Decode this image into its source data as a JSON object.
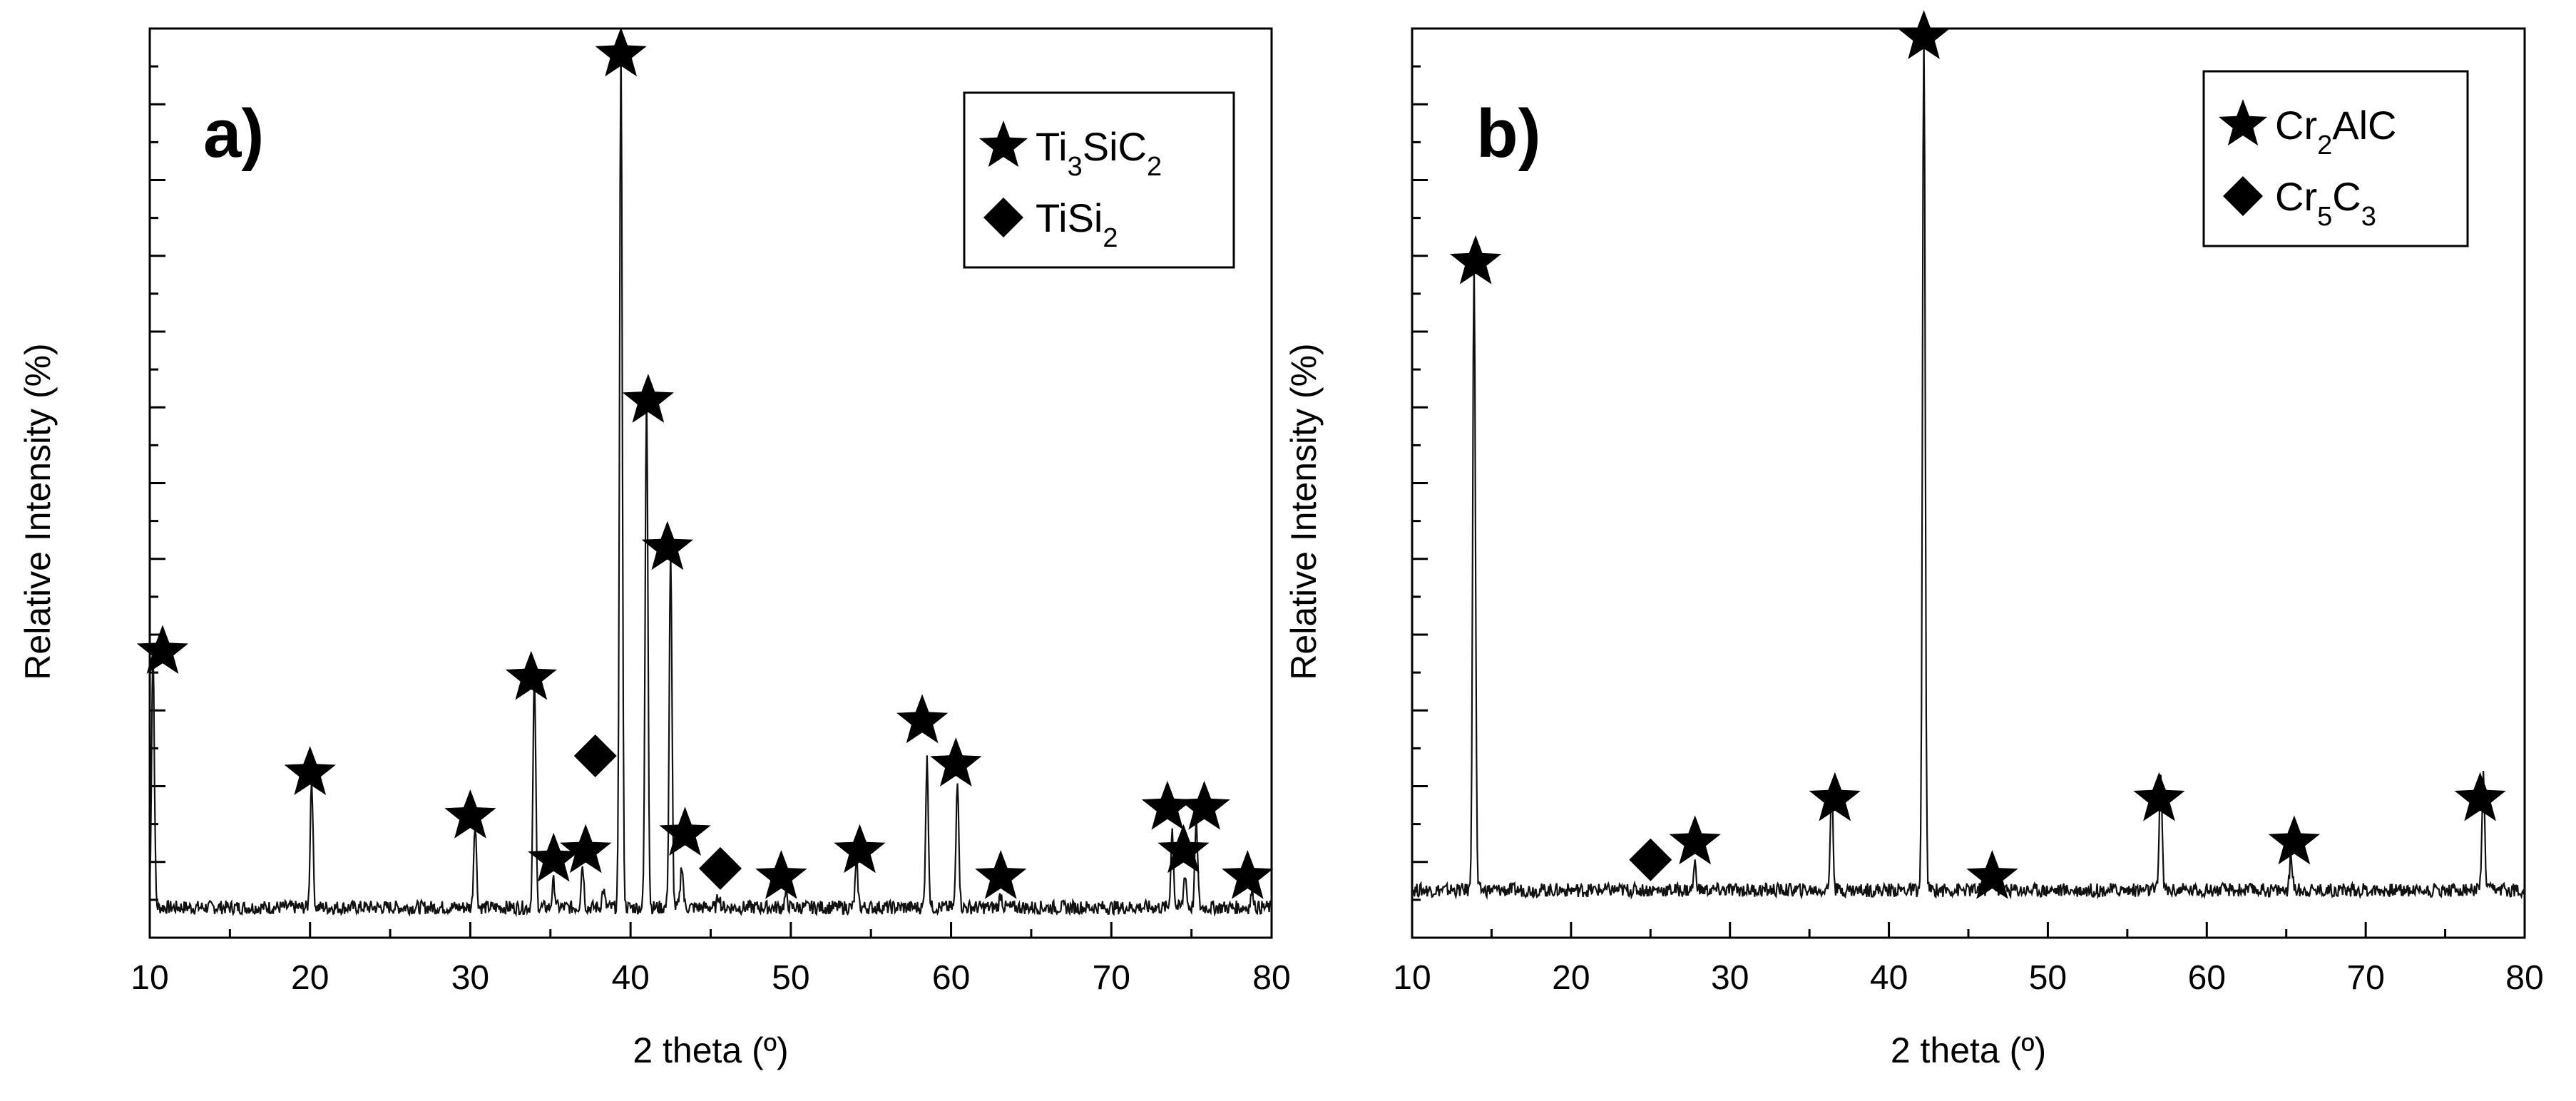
{
  "chart_data": [
    {
      "type": "line",
      "panel_label": "a)",
      "xlabel": "2 theta (º)",
      "ylabel": "Relative Intensity (%)",
      "xlim": [
        10,
        80
      ],
      "ylim": [
        0,
        105
      ],
      "x_ticks": [
        10,
        20,
        30,
        40,
        50,
        60,
        70,
        80
      ],
      "x_tick_labels": [
        "10",
        "20",
        "30",
        "40",
        "50",
        "60",
        "70",
        "80"
      ],
      "y_tick_labels_shown": false,
      "grid": false,
      "legend_position": "top-right",
      "legend": [
        {
          "marker": "star",
          "label_parts": [
            [
              "Ti",
              ""
            ],
            [
              "3",
              "sub"
            ],
            [
              "SiC",
              ""
            ],
            [
              "2",
              "sub"
            ]
          ]
        },
        {
          "marker": "diamond",
          "label_parts": [
            [
              "TiSi",
              ""
            ],
            [
              "2",
              "sub"
            ]
          ]
        }
      ],
      "baseline": 3.5,
      "peaks": [
        [
          10.2,
          30
        ],
        [
          20.1,
          15
        ],
        [
          30.3,
          10
        ],
        [
          34.0,
          27
        ],
        [
          35.2,
          3
        ],
        [
          37.0,
          5
        ],
        [
          38.3,
          2
        ],
        [
          39.4,
          100
        ],
        [
          41.0,
          60
        ],
        [
          42.5,
          41
        ],
        [
          43.2,
          5
        ],
        [
          45.5,
          1.5
        ],
        [
          49.7,
          1.5
        ],
        [
          54.1,
          5
        ],
        [
          58.5,
          17
        ],
        [
          60.4,
          15
        ],
        [
          63.1,
          1.5
        ],
        [
          73.8,
          9
        ],
        [
          74.6,
          4
        ],
        [
          75.3,
          10
        ],
        [
          78.8,
          2
        ]
      ],
      "markers": [
        {
          "kind": "star",
          "x": 10.8,
          "y": 33
        },
        {
          "kind": "star",
          "x": 20.0,
          "y": 19
        },
        {
          "kind": "star",
          "x": 30.0,
          "y": 14
        },
        {
          "kind": "star",
          "x": 33.8,
          "y": 30
        },
        {
          "kind": "star",
          "x": 35.2,
          "y": 9
        },
        {
          "kind": "star",
          "x": 37.2,
          "y": 10
        },
        {
          "kind": "diamond",
          "x": 37.8,
          "y": 21
        },
        {
          "kind": "star",
          "x": 39.4,
          "y": 102
        },
        {
          "kind": "star",
          "x": 41.1,
          "y": 62
        },
        {
          "kind": "star",
          "x": 42.3,
          "y": 45
        },
        {
          "kind": "star",
          "x": 43.4,
          "y": 12
        },
        {
          "kind": "diamond",
          "x": 45.6,
          "y": 8
        },
        {
          "kind": "star",
          "x": 49.4,
          "y": 7
        },
        {
          "kind": "star",
          "x": 54.3,
          "y": 10
        },
        {
          "kind": "star",
          "x": 58.2,
          "y": 25
        },
        {
          "kind": "star",
          "x": 60.3,
          "y": 20
        },
        {
          "kind": "star",
          "x": 63.1,
          "y": 7
        },
        {
          "kind": "star",
          "x": 73.5,
          "y": 15
        },
        {
          "kind": "star",
          "x": 74.5,
          "y": 10
        },
        {
          "kind": "star",
          "x": 75.8,
          "y": 15
        },
        {
          "kind": "star",
          "x": 78.5,
          "y": 7
        }
      ]
    },
    {
      "type": "line",
      "panel_label": "b)",
      "xlabel": "2 theta (º)",
      "ylabel": "Relative Intensity (%)",
      "xlim": [
        10,
        80
      ],
      "ylim": [
        0,
        105
      ],
      "x_ticks": [
        10,
        20,
        30,
        40,
        50,
        60,
        70,
        80
      ],
      "x_tick_labels": [
        "10",
        "20",
        "30",
        "40",
        "50",
        "60",
        "70",
        "80"
      ],
      "y_tick_labels_shown": false,
      "grid": false,
      "legend_position": "top-right",
      "legend": [
        {
          "marker": "star",
          "label_parts": [
            [
              "Cr",
              ""
            ],
            [
              "2",
              "sub"
            ],
            [
              "AlC",
              ""
            ]
          ]
        },
        {
          "marker": "diamond",
          "label_parts": [
            [
              "Cr",
              ""
            ],
            [
              "5",
              "sub"
            ],
            [
              "C",
              ""
            ],
            [
              "3",
              "sub"
            ]
          ]
        }
      ],
      "baseline": 5.5,
      "peaks": [
        [
          13.9,
          73
        ],
        [
          27.8,
          3
        ],
        [
          36.4,
          12
        ],
        [
          42.2,
          100
        ],
        [
          46.4,
          2
        ],
        [
          57.1,
          14
        ],
        [
          65.3,
          4
        ],
        [
          77.4,
          13
        ]
      ],
      "markers": [
        {
          "kind": "star",
          "x": 14.0,
          "y": 78
        },
        {
          "kind": "diamond",
          "x": 25.0,
          "y": 9
        },
        {
          "kind": "star",
          "x": 27.8,
          "y": 11
        },
        {
          "kind": "star",
          "x": 36.6,
          "y": 16
        },
        {
          "kind": "star",
          "x": 42.2,
          "y": 104
        },
        {
          "kind": "star",
          "x": 46.5,
          "y": 7
        },
        {
          "kind": "star",
          "x": 57.0,
          "y": 16
        },
        {
          "kind": "star",
          "x": 65.5,
          "y": 11
        },
        {
          "kind": "star",
          "x": 77.2,
          "y": 16
        }
      ]
    }
  ]
}
